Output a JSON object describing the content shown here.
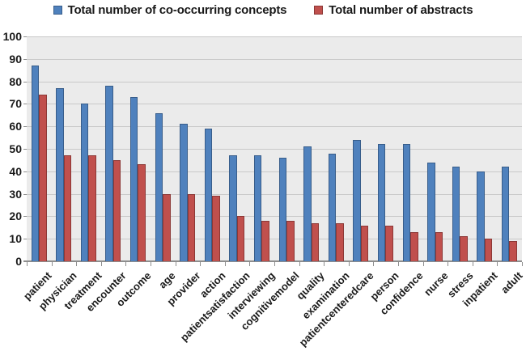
{
  "chart_data": {
    "type": "bar",
    "title": "",
    "xlabel": "",
    "ylabel": "",
    "categories": [
      "patient",
      "physician",
      "treatment",
      "encounter",
      "outcome",
      "age",
      "provider",
      "action",
      "patientsatisfaction",
      "interviewing",
      "cognitivemodel",
      "quality",
      "examination",
      "patientcenteredcare",
      "person",
      "confidence",
      "nurse",
      "stress",
      "inpatient",
      "adult"
    ],
    "series": [
      {
        "name": "Total number of co-occurring concepts",
        "color": "#4F81BD",
        "border_color": "#385D8A",
        "values": [
          87,
          77,
          70,
          78,
          73,
          66,
          61,
          59,
          47,
          47,
          46,
          51,
          48,
          54,
          52,
          52,
          44,
          42,
          40,
          42
        ]
      },
      {
        "name": "Total number of abstracts",
        "color": "#C0504D",
        "border_color": "#8C3836",
        "values": [
          74,
          47,
          47,
          45,
          43,
          30,
          30,
          29,
          20,
          18,
          18,
          17,
          17,
          16,
          16,
          13,
          13,
          11,
          10,
          9
        ]
      }
    ],
    "ylim": [
      0,
      100
    ],
    "y_ticks": [
      0,
      10,
      20,
      30,
      40,
      50,
      60,
      70,
      80,
      90,
      100
    ],
    "grid": true,
    "legend_position": "top",
    "colors": {
      "plot_background": "#EBEBEB",
      "gridline": "#C9C9C9",
      "axis": "#8E8E8E",
      "text": "#1A1A1A"
    }
  }
}
